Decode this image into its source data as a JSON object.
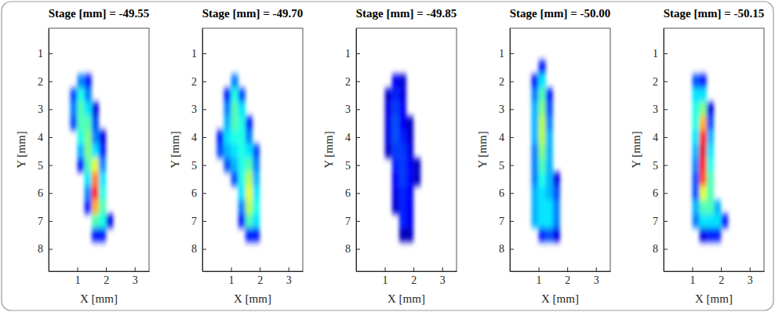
{
  "chart_data": [
    {
      "type": "heatmap",
      "title": "Stage [mm] = -49.55",
      "x_label": "X [mm]",
      "y_label": "Y [mm]",
      "xlim": [
        0,
        3.5
      ],
      "ylim": [
        8.8,
        0.1
      ],
      "xticks": [
        1,
        2,
        3
      ],
      "yticks": [
        1,
        2,
        3,
        4,
        5,
        6,
        7,
        8
      ],
      "clim": [
        0,
        1
      ],
      "cells": [
        [
          1.125,
          2.0,
          0.25
        ],
        [
          1.375,
          2.0,
          0.15
        ],
        [
          0.875,
          2.5,
          0.2
        ],
        [
          1.125,
          2.5,
          0.4
        ],
        [
          1.375,
          2.5,
          0.25
        ],
        [
          0.875,
          3.0,
          0.25
        ],
        [
          1.125,
          3.0,
          0.45
        ],
        [
          1.375,
          3.0,
          0.35
        ],
        [
          1.625,
          3.0,
          0.1
        ],
        [
          0.875,
          3.5,
          0.2
        ],
        [
          1.125,
          3.5,
          0.45
        ],
        [
          1.375,
          3.5,
          0.45
        ],
        [
          1.625,
          3.5,
          0.2
        ],
        [
          1.125,
          4.0,
          0.4
        ],
        [
          1.375,
          4.0,
          0.5
        ],
        [
          1.625,
          4.0,
          0.25
        ],
        [
          1.875,
          4.0,
          0.1
        ],
        [
          1.125,
          4.5,
          0.3
        ],
        [
          1.375,
          4.5,
          0.5
        ],
        [
          1.625,
          4.5,
          0.35
        ],
        [
          1.875,
          4.5,
          0.15
        ],
        [
          1.125,
          5.0,
          0.15
        ],
        [
          1.375,
          5.0,
          0.45
        ],
        [
          1.625,
          5.0,
          0.6
        ],
        [
          1.875,
          5.0,
          0.25
        ],
        [
          1.375,
          5.5,
          0.35
        ],
        [
          1.625,
          5.5,
          0.75
        ],
        [
          1.875,
          5.5,
          0.35
        ],
        [
          1.375,
          6.0,
          0.25
        ],
        [
          1.625,
          6.0,
          0.85
        ],
        [
          1.875,
          6.0,
          0.4
        ],
        [
          1.375,
          6.5,
          0.15
        ],
        [
          1.625,
          6.5,
          0.7
        ],
        [
          1.875,
          6.5,
          0.45
        ],
        [
          1.625,
          7.0,
          0.45
        ],
        [
          1.875,
          7.0,
          0.4
        ],
        [
          2.125,
          7.0,
          0.1
        ],
        [
          1.625,
          7.5,
          0.15
        ],
        [
          1.875,
          7.5,
          0.15
        ]
      ]
    },
    {
      "type": "heatmap",
      "title": "Stage [mm] = -49.70",
      "x_label": "X [mm]",
      "y_label": "Y [mm]",
      "xlim": [
        0,
        3.5
      ],
      "ylim": [
        8.8,
        0.1
      ],
      "xticks": [
        1,
        2,
        3
      ],
      "yticks": [
        1,
        2,
        3,
        4,
        5,
        6,
        7,
        8
      ],
      "clim": [
        0,
        1
      ],
      "cells": [
        [
          1.125,
          2.0,
          0.25
        ],
        [
          0.875,
          2.5,
          0.15
        ],
        [
          1.125,
          2.5,
          0.4
        ],
        [
          1.375,
          2.5,
          0.2
        ],
        [
          0.875,
          3.0,
          0.25
        ],
        [
          1.125,
          3.0,
          0.45
        ],
        [
          1.375,
          3.0,
          0.35
        ],
        [
          0.875,
          3.5,
          0.3
        ],
        [
          1.125,
          3.5,
          0.45
        ],
        [
          1.375,
          3.5,
          0.4
        ],
        [
          1.625,
          3.5,
          0.15
        ],
        [
          0.625,
          4.0,
          0.15
        ],
        [
          0.875,
          4.0,
          0.35
        ],
        [
          1.125,
          4.0,
          0.4
        ],
        [
          1.375,
          4.0,
          0.4
        ],
        [
          1.625,
          4.0,
          0.25
        ],
        [
          0.625,
          4.5,
          0.2
        ],
        [
          0.875,
          4.5,
          0.3
        ],
        [
          1.125,
          4.5,
          0.35
        ],
        [
          1.375,
          4.5,
          0.4
        ],
        [
          1.625,
          4.5,
          0.35
        ],
        [
          1.875,
          4.5,
          0.2
        ],
        [
          0.875,
          5.0,
          0.2
        ],
        [
          1.125,
          5.0,
          0.3
        ],
        [
          1.375,
          5.0,
          0.4
        ],
        [
          1.625,
          5.0,
          0.45
        ],
        [
          1.875,
          5.0,
          0.25
        ],
        [
          1.125,
          5.5,
          0.2
        ],
        [
          1.375,
          5.5,
          0.4
        ],
        [
          1.625,
          5.5,
          0.55
        ],
        [
          1.875,
          5.5,
          0.3
        ],
        [
          1.375,
          6.0,
          0.35
        ],
        [
          1.625,
          6.0,
          0.6
        ],
        [
          1.875,
          6.0,
          0.35
        ],
        [
          1.375,
          6.5,
          0.25
        ],
        [
          1.625,
          6.5,
          0.55
        ],
        [
          1.875,
          6.5,
          0.4
        ],
        [
          1.375,
          7.0,
          0.15
        ],
        [
          1.625,
          7.0,
          0.45
        ],
        [
          1.875,
          7.0,
          0.35
        ],
        [
          1.625,
          7.5,
          0.15
        ],
        [
          1.875,
          7.5,
          0.15
        ]
      ]
    },
    {
      "type": "heatmap",
      "title": "Stage [mm] = -49.85",
      "x_label": "X [mm]",
      "y_label": "Y [mm]",
      "xlim": [
        0,
        3.5
      ],
      "ylim": [
        8.8,
        0.1
      ],
      "xticks": [
        1,
        2,
        3
      ],
      "yticks": [
        1,
        2,
        3,
        4,
        5,
        6,
        7,
        8
      ],
      "clim": [
        0,
        1
      ],
      "cells": [
        [
          1.375,
          2.0,
          0.12
        ],
        [
          1.625,
          2.0,
          0.08
        ],
        [
          1.125,
          2.5,
          0.08
        ],
        [
          1.375,
          2.5,
          0.15
        ],
        [
          1.625,
          2.5,
          0.1
        ],
        [
          1.125,
          3.0,
          0.1
        ],
        [
          1.375,
          3.0,
          0.18
        ],
        [
          1.625,
          3.0,
          0.12
        ],
        [
          1.125,
          3.5,
          0.1
        ],
        [
          1.375,
          3.5,
          0.2
        ],
        [
          1.625,
          3.5,
          0.12
        ],
        [
          1.875,
          3.5,
          0.06
        ],
        [
          1.125,
          4.0,
          0.1
        ],
        [
          1.375,
          4.0,
          0.2
        ],
        [
          1.625,
          4.0,
          0.15
        ],
        [
          1.875,
          4.0,
          0.08
        ],
        [
          1.125,
          4.5,
          0.08
        ],
        [
          1.375,
          4.5,
          0.18
        ],
        [
          1.625,
          4.5,
          0.18
        ],
        [
          1.875,
          4.5,
          0.1
        ],
        [
          1.375,
          5.0,
          0.15
        ],
        [
          1.625,
          5.0,
          0.18
        ],
        [
          1.875,
          5.0,
          0.12
        ],
        [
          2.125,
          5.0,
          0.06
        ],
        [
          1.375,
          5.5,
          0.12
        ],
        [
          1.625,
          5.5,
          0.18
        ],
        [
          1.875,
          5.5,
          0.12
        ],
        [
          2.125,
          5.5,
          0.06
        ],
        [
          1.375,
          6.0,
          0.1
        ],
        [
          1.625,
          6.0,
          0.16
        ],
        [
          1.875,
          6.0,
          0.12
        ],
        [
          1.375,
          6.5,
          0.08
        ],
        [
          1.625,
          6.5,
          0.15
        ],
        [
          1.875,
          6.5,
          0.12
        ],
        [
          1.625,
          7.0,
          0.15
        ],
        [
          1.875,
          7.0,
          0.12
        ],
        [
          1.625,
          7.5,
          0.06
        ],
        [
          1.875,
          7.5,
          0.06
        ]
      ]
    },
    {
      "type": "heatmap",
      "title": "Stage [mm] = -50.00",
      "x_label": "X [mm]",
      "y_label": "Y [mm]",
      "xlim": [
        0,
        3.5
      ],
      "ylim": [
        8.8,
        0.1
      ],
      "xticks": [
        1,
        2,
        3
      ],
      "yticks": [
        1,
        2,
        3,
        4,
        5,
        6,
        7,
        8
      ],
      "clim": [
        0,
        1
      ],
      "cells": [
        [
          1.125,
          1.5,
          0.15
        ],
        [
          0.875,
          2.0,
          0.15
        ],
        [
          1.125,
          2.0,
          0.35
        ],
        [
          0.875,
          2.5,
          0.25
        ],
        [
          1.125,
          2.5,
          0.45
        ],
        [
          1.375,
          2.5,
          0.15
        ],
        [
          0.875,
          3.0,
          0.3
        ],
        [
          1.125,
          3.0,
          0.5
        ],
        [
          1.375,
          3.0,
          0.2
        ],
        [
          0.875,
          3.5,
          0.3
        ],
        [
          1.125,
          3.5,
          0.55
        ],
        [
          1.375,
          3.5,
          0.25
        ],
        [
          0.875,
          4.0,
          0.3
        ],
        [
          1.125,
          4.0,
          0.55
        ],
        [
          1.375,
          4.0,
          0.3
        ],
        [
          0.875,
          4.5,
          0.25
        ],
        [
          1.125,
          4.5,
          0.5
        ],
        [
          1.375,
          4.5,
          0.3
        ],
        [
          0.875,
          5.0,
          0.25
        ],
        [
          1.125,
          5.0,
          0.45
        ],
        [
          1.375,
          5.0,
          0.3
        ],
        [
          0.875,
          5.5,
          0.25
        ],
        [
          1.125,
          5.5,
          0.4
        ],
        [
          1.375,
          5.5,
          0.3
        ],
        [
          1.625,
          5.5,
          0.1
        ],
        [
          0.875,
          6.0,
          0.3
        ],
        [
          1.125,
          6.0,
          0.35
        ],
        [
          1.375,
          6.0,
          0.3
        ],
        [
          1.625,
          6.0,
          0.2
        ],
        [
          0.875,
          6.5,
          0.3
        ],
        [
          1.125,
          6.5,
          0.35
        ],
        [
          1.375,
          6.5,
          0.35
        ],
        [
          1.625,
          6.5,
          0.25
        ],
        [
          0.875,
          7.0,
          0.3
        ],
        [
          1.125,
          7.0,
          0.35
        ],
        [
          1.375,
          7.0,
          0.35
        ],
        [
          1.625,
          7.0,
          0.25
        ],
        [
          1.125,
          7.5,
          0.15
        ],
        [
          1.375,
          7.5,
          0.2
        ],
        [
          1.625,
          7.5,
          0.1
        ]
      ]
    },
    {
      "type": "heatmap",
      "title": "Stage [mm] = -50.15",
      "x_label": "X [mm]",
      "y_label": "Y [mm]",
      "xlim": [
        0,
        3.5
      ],
      "ylim": [
        8.8,
        0.1
      ],
      "xticks": [
        1,
        2,
        3
      ],
      "yticks": [
        1,
        2,
        3,
        4,
        5,
        6,
        7,
        8
      ],
      "clim": [
        0,
        1
      ],
      "cells": [
        [
          1.125,
          2.0,
          0.2
        ],
        [
          1.375,
          2.0,
          0.15
        ],
        [
          1.125,
          2.5,
          0.35
        ],
        [
          1.375,
          2.5,
          0.35
        ],
        [
          1.125,
          3.0,
          0.4
        ],
        [
          1.375,
          3.0,
          0.5
        ],
        [
          1.625,
          3.0,
          0.1
        ],
        [
          1.125,
          3.5,
          0.4
        ],
        [
          1.375,
          3.5,
          0.7
        ],
        [
          1.625,
          3.5,
          0.2
        ],
        [
          1.125,
          4.0,
          0.35
        ],
        [
          1.375,
          4.0,
          0.85
        ],
        [
          1.625,
          4.0,
          0.3
        ],
        [
          1.125,
          4.5,
          0.3
        ],
        [
          1.375,
          4.5,
          0.9
        ],
        [
          1.625,
          4.5,
          0.35
        ],
        [
          1.125,
          5.0,
          0.25
        ],
        [
          1.375,
          5.0,
          0.85
        ],
        [
          1.625,
          5.0,
          0.4
        ],
        [
          1.125,
          5.5,
          0.2
        ],
        [
          1.375,
          5.5,
          0.8
        ],
        [
          1.625,
          5.5,
          0.45
        ],
        [
          1.125,
          6.0,
          0.2
        ],
        [
          1.375,
          6.0,
          0.6
        ],
        [
          1.625,
          6.0,
          0.45
        ],
        [
          1.125,
          6.5,
          0.3
        ],
        [
          1.375,
          6.5,
          0.45
        ],
        [
          1.625,
          6.5,
          0.45
        ],
        [
          1.875,
          6.5,
          0.3
        ],
        [
          1.125,
          7.0,
          0.25
        ],
        [
          1.375,
          7.0,
          0.35
        ],
        [
          1.625,
          7.0,
          0.35
        ],
        [
          1.875,
          7.0,
          0.35
        ],
        [
          2.125,
          7.0,
          0.15
        ],
        [
          1.375,
          7.5,
          0.1
        ],
        [
          1.625,
          7.5,
          0.15
        ],
        [
          1.875,
          7.5,
          0.15
        ]
      ]
    }
  ]
}
